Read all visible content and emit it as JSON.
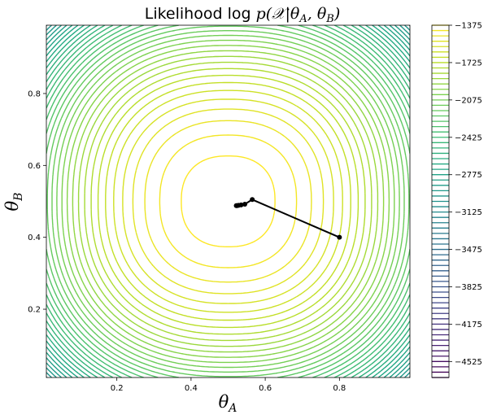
{
  "chart_data": {
    "type": "contour",
    "title": {
      "prefix": "Likelihood log ",
      "math": "p(𝒳|θ",
      "sub_a": "A",
      "mid": ", θ",
      "sub_b": "B",
      "end": ")"
    },
    "xlabel": {
      "symbol": "θ",
      "sub": "A"
    },
    "ylabel": {
      "symbol": "θ",
      "sub": "B"
    },
    "xlim": [
      0.01,
      0.99
    ],
    "ylim": [
      0.01,
      0.99
    ],
    "x_ticks": [
      {
        "value": 0.2,
        "label": "0.2"
      },
      {
        "value": 0.4,
        "label": "0.4"
      },
      {
        "value": 0.6,
        "label": "0.6"
      },
      {
        "value": 0.8,
        "label": "0.8"
      }
    ],
    "y_ticks": [
      {
        "value": 0.2,
        "label": "0.2"
      },
      {
        "value": 0.4,
        "label": "0.4"
      },
      {
        "value": 0.6,
        "label": "0.6"
      },
      {
        "value": 0.8,
        "label": "0.8"
      }
    ],
    "contour_levels": {
      "min": -4675,
      "max": -1375,
      "step": 50
    },
    "colorbar": {
      "colormap": "viridis",
      "ticks": [
        {
          "value": -1375,
          "label": "−1375"
        },
        {
          "value": -1725,
          "label": "−1725"
        },
        {
          "value": -2075,
          "label": "−2075"
        },
        {
          "value": -2425,
          "label": "−2425"
        },
        {
          "value": -2775,
          "label": "−2775"
        },
        {
          "value": -3125,
          "label": "−3125"
        },
        {
          "value": -3475,
          "label": "−3475"
        },
        {
          "value": -3825,
          "label": "−3825"
        },
        {
          "value": -4175,
          "label": "−4175"
        },
        {
          "value": -4525,
          "label": "−4525"
        }
      ]
    },
    "em_path": {
      "color": "#000000",
      "points": [
        [
          0.8,
          0.4
        ],
        [
          0.565,
          0.505
        ],
        [
          0.545,
          0.492
        ],
        [
          0.535,
          0.49
        ],
        [
          0.528,
          0.489
        ],
        [
          0.524,
          0.488
        ],
        [
          0.522,
          0.488
        ]
      ]
    }
  }
}
